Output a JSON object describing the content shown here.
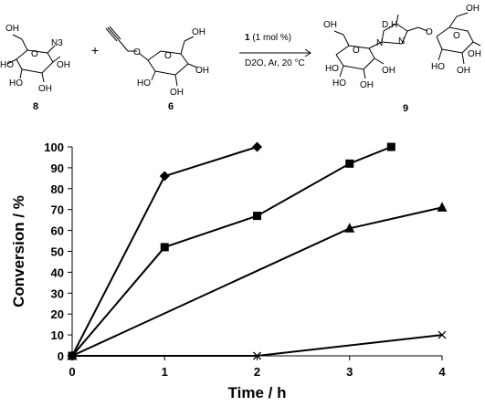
{
  "scheme": {
    "reactant_1_label": "8",
    "reactant_2_label": "6",
    "product_label": "9",
    "plus_sign": "+",
    "catalyst_number": "1",
    "catalyst_loading": " (1 mol %)",
    "conditions": "D2O, Ar, 20 °C",
    "atom_labels": {
      "n3": "N3",
      "n": "N",
      "o": "O",
      "oh": "OH",
      "ho": "HO",
      "d_h": "D,H"
    }
  },
  "chart_data": {
    "type": "line",
    "title": "",
    "xlabel": "Time / h",
    "ylabel": "Conversion / %",
    "xlim": [
      0,
      4
    ],
    "ylim": [
      0,
      100
    ],
    "xticks": [
      0,
      1,
      2,
      3,
      4
    ],
    "yticks": [
      0,
      10,
      20,
      30,
      40,
      50,
      60,
      70,
      80,
      90,
      100
    ],
    "grid": false,
    "legend": "none",
    "series": [
      {
        "marker": "diamond",
        "x": [
          0,
          1,
          2
        ],
        "y": [
          0,
          86,
          100
        ]
      },
      {
        "marker": "square",
        "x": [
          0,
          1,
          2,
          3,
          3.45
        ],
        "y": [
          0,
          52,
          67,
          92,
          100
        ]
      },
      {
        "marker": "triangle",
        "x": [
          0,
          3,
          4
        ],
        "y": [
          0,
          61,
          71
        ]
      },
      {
        "marker": "cross",
        "x": [
          0,
          2,
          4
        ],
        "y": [
          0,
          0,
          10
        ]
      }
    ]
  }
}
